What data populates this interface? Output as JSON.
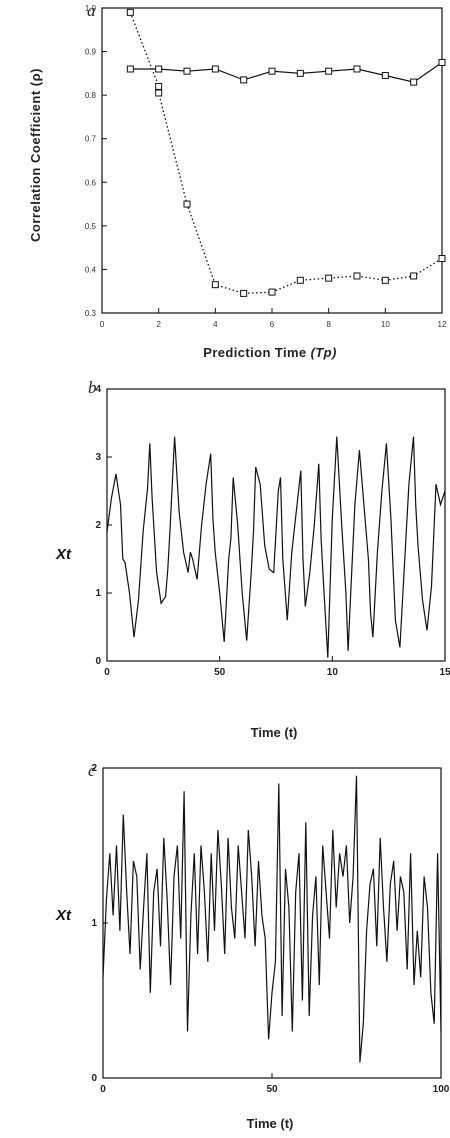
{
  "chart_data": [
    {
      "panel": "a",
      "type": "line",
      "xlabel": "Prediction Time (Tp)",
      "ylabel": "Correlation Coefficient (ρ)",
      "xlim": [
        0,
        12
      ],
      "ylim": [
        0.3,
        1.0
      ],
      "xticks": [
        "0",
        "2",
        "4",
        "6",
        "8",
        "10",
        "12"
      ],
      "yticks": [
        "0.3",
        "0.4",
        "0.5",
        "0.6",
        "0.7",
        "0.8",
        "0.9",
        "1.0"
      ],
      "series": [
        {
          "style": "solid",
          "x": [
            1,
            2,
            3,
            4,
            5,
            6,
            7,
            8,
            9,
            10,
            11,
            12
          ],
          "values": [
            0.86,
            0.86,
            0.855,
            0.86,
            0.835,
            0.855,
            0.85,
            0.855,
            0.86,
            0.845,
            0.83,
            0.875
          ]
        },
        {
          "style": "dotted",
          "x": [
            1,
            2,
            2,
            3,
            4,
            5,
            6,
            7,
            8,
            9,
            10,
            11,
            12
          ],
          "values": [
            0.99,
            0.82,
            0.805,
            0.55,
            0.365,
            0.345,
            0.348,
            0.375,
            0.38,
            0.385,
            0.375,
            0.385,
            0.425
          ]
        }
      ]
    },
    {
      "panel": "b",
      "type": "line",
      "xlabel": "Time (t)",
      "ylabel": "Xt",
      "xlim": [
        0,
        150
      ],
      "ylim": [
        0,
        4
      ],
      "xticks": [
        "0",
        "50",
        "10",
        "15"
      ],
      "yticks": [
        "0",
        "1",
        "2",
        "3",
        "4"
      ],
      "series": [
        {
          "x": [
            0,
            2,
            4,
            6,
            7,
            8,
            10,
            12,
            14,
            16,
            18,
            19,
            20,
            22,
            24,
            26,
            27,
            28,
            30,
            32,
            34,
            36,
            37,
            38,
            40,
            42,
            44,
            46,
            47,
            48,
            50,
            52,
            54,
            55,
            56,
            58,
            60,
            62,
            64,
            65,
            66,
            68,
            70,
            72,
            74,
            76,
            77,
            78,
            80,
            82,
            84,
            86,
            87,
            88,
            90,
            92,
            94,
            95,
            96,
            98,
            100,
            102,
            104,
            106,
            107,
            108,
            110,
            112,
            114,
            116,
            117,
            118,
            120,
            122,
            124,
            126,
            128,
            130,
            132,
            134,
            136,
            137,
            138,
            140,
            142,
            144,
            146,
            148,
            150
          ],
          "values": [
            1.9,
            2.4,
            2.75,
            2.3,
            1.5,
            1.45,
            1.0,
            0.35,
            0.9,
            1.9,
            2.55,
            3.2,
            2.4,
            1.3,
            0.85,
            0.95,
            1.35,
            1.95,
            3.3,
            2.2,
            1.6,
            1.3,
            1.6,
            1.5,
            1.2,
            2.0,
            2.6,
            3.05,
            2.1,
            1.6,
            1.0,
            0.28,
            1.5,
            1.8,
            2.7,
            2.0,
            1.0,
            0.3,
            1.3,
            1.9,
            2.85,
            2.6,
            1.7,
            1.35,
            1.3,
            2.5,
            2.7,
            1.5,
            0.6,
            1.6,
            2.2,
            2.8,
            1.5,
            0.8,
            1.3,
            2.0,
            2.9,
            1.8,
            1.2,
            0.05,
            2.1,
            3.3,
            2.1,
            1.0,
            0.15,
            0.9,
            2.3,
            3.1,
            2.3,
            1.5,
            0.7,
            0.35,
            1.6,
            2.5,
            3.2,
            2.1,
            0.6,
            0.2,
            1.4,
            2.6,
            3.3,
            2.3,
            1.7,
            0.9,
            0.45,
            1.1,
            2.6,
            2.3,
            2.5
          ]
        }
      ]
    },
    {
      "panel": "c",
      "type": "line",
      "xlabel": "Time (t)",
      "ylabel": "Xt",
      "xlim": [
        0,
        100
      ],
      "ylim": [
        0,
        2
      ],
      "xticks": [
        "0",
        "50",
        "100"
      ],
      "yticks": [
        "0",
        "1",
        "2"
      ],
      "series": [
        {
          "x": [
            0,
            1,
            2,
            3,
            4,
            5,
            6,
            7,
            8,
            9,
            10,
            11,
            12,
            13,
            14,
            15,
            16,
            17,
            18,
            19,
            20,
            21,
            22,
            23,
            24,
            25,
            26,
            27,
            28,
            29,
            30,
            31,
            32,
            33,
            34,
            35,
            36,
            37,
            38,
            39,
            40,
            41,
            42,
            43,
            44,
            45,
            46,
            47,
            48,
            49,
            50,
            51,
            52,
            53,
            54,
            55,
            56,
            57,
            58,
            59,
            60,
            61,
            62,
            63,
            64,
            65,
            66,
            67,
            68,
            69,
            70,
            71,
            72,
            73,
            74,
            75,
            76,
            77,
            78,
            79,
            80,
            81,
            82,
            83,
            84,
            85,
            86,
            87,
            88,
            89,
            90,
            91,
            92,
            93,
            94,
            95,
            96,
            97,
            98,
            99,
            100
          ],
          "values": [
            0.65,
            1.15,
            1.45,
            1.05,
            1.5,
            0.95,
            1.7,
            1.2,
            0.8,
            1.4,
            1.3,
            0.7,
            1.1,
            1.45,
            0.55,
            1.2,
            1.35,
            0.85,
            1.55,
            1.15,
            0.6,
            1.3,
            1.5,
            0.9,
            1.85,
            0.3,
            1.05,
            1.45,
            0.8,
            1.5,
            1.2,
            0.75,
            1.45,
            0.95,
            1.6,
            1.25,
            0.8,
            1.55,
            1.1,
            0.9,
            1.5,
            1.2,
            0.9,
            1.6,
            1.3,
            0.85,
            1.4,
            1.05,
            0.9,
            0.25,
            0.55,
            0.75,
            1.9,
            0.4,
            1.35,
            1.1,
            0.3,
            1.2,
            1.45,
            0.5,
            1.65,
            0.4,
            1.05,
            1.3,
            0.6,
            1.5,
            1.2,
            0.9,
            1.6,
            1.1,
            1.45,
            1.3,
            1.5,
            1.0,
            1.3,
            1.95,
            0.1,
            0.35,
            0.95,
            1.25,
            1.35,
            0.85,
            1.55,
            1.1,
            0.75,
            1.25,
            1.4,
            0.95,
            1.3,
            1.2,
            0.7,
            1.45,
            0.6,
            0.95,
            0.65,
            1.3,
            1.1,
            0.55,
            0.35,
            1.45,
            0.3
          ]
        }
      ]
    }
  ],
  "panels": {
    "a": {
      "letter": "a",
      "xlabel": "Prediction Time",
      "xlabel_sym": "(Tp)",
      "ylabel": "Correlation Coefficient (ρ)"
    },
    "b": {
      "letter": "b",
      "xlabel": "Time (t)",
      "ylabel_sym": "Xt"
    },
    "c": {
      "letter": "c",
      "xlabel": "Time (t)",
      "ylabel_sym": "Xt"
    }
  }
}
